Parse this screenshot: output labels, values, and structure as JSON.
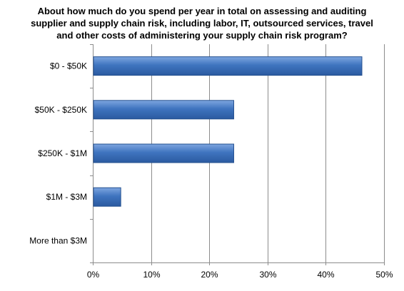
{
  "chart_data": {
    "type": "bar",
    "orientation": "horizontal",
    "title_lines": [
      "About how much do you spend per year in total on assessing and auditing",
      "supplier and supply chain risk, including labor, IT, outsourced services, travel",
      "and other costs of administering your supply chain risk program?"
    ],
    "categories": [
      "$0 - $50K",
      "$50K - $250K",
      "$250K - $1M",
      "$1M - $3M",
      "More than $3M"
    ],
    "values": [
      46.2,
      24.2,
      24.2,
      4.8,
      0
    ],
    "xlim": [
      0,
      50
    ],
    "ticks": [
      0,
      10,
      20,
      30,
      40,
      50
    ],
    "tick_labels": [
      "0%",
      "10%",
      "20%",
      "30%",
      "40%",
      "50%"
    ],
    "grid": "vertical",
    "legend": "none",
    "bar_color": "#3f74bf",
    "bar_edge_color": "#24508f"
  }
}
